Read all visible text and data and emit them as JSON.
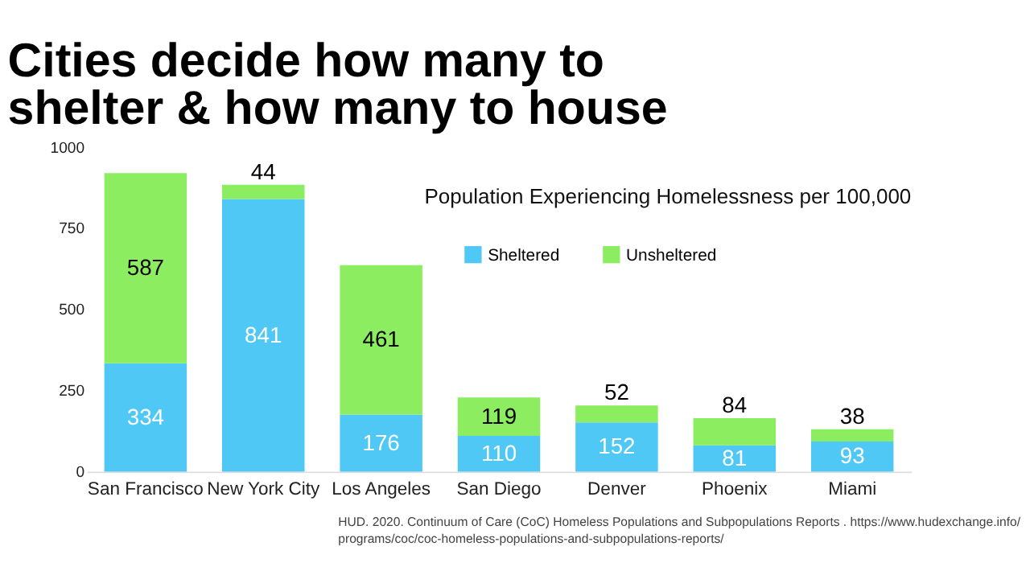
{
  "chart_data": {
    "type": "bar",
    "title": "Cities decide how many to\nshelter & how many to house",
    "subtitle": "Population Experiencing Homelessness per 100,000",
    "categories": [
      "San Francisco",
      "New York City",
      "Los Angeles",
      "San Diego",
      "Denver",
      "Phoenix",
      "Miami"
    ],
    "series": [
      {
        "name": "Sheltered",
        "color": "#4fc8f5",
        "values": [
          334,
          841,
          176,
          110,
          152,
          81,
          93
        ]
      },
      {
        "name": "Unsheltered",
        "color": "#8bed5f",
        "values": [
          587,
          44,
          461,
          119,
          52,
          84,
          38
        ]
      }
    ],
    "stacked": true,
    "data_labels": true,
    "ylim": [
      0,
      1000
    ],
    "yticks": [
      0,
      250,
      500,
      750,
      {
        "value": 1000,
        "label": "1000"
      }
    ],
    "grid": false,
    "legend": "top right",
    "annotations": [
      "HUD. 2020. Continuum of Care (CoC) Homeless Populations and Subpopulations Reports . https://www.hudexchange.info/programs/coc/coc-homeless-populations-and-subpopulations-reports/"
    ]
  }
}
